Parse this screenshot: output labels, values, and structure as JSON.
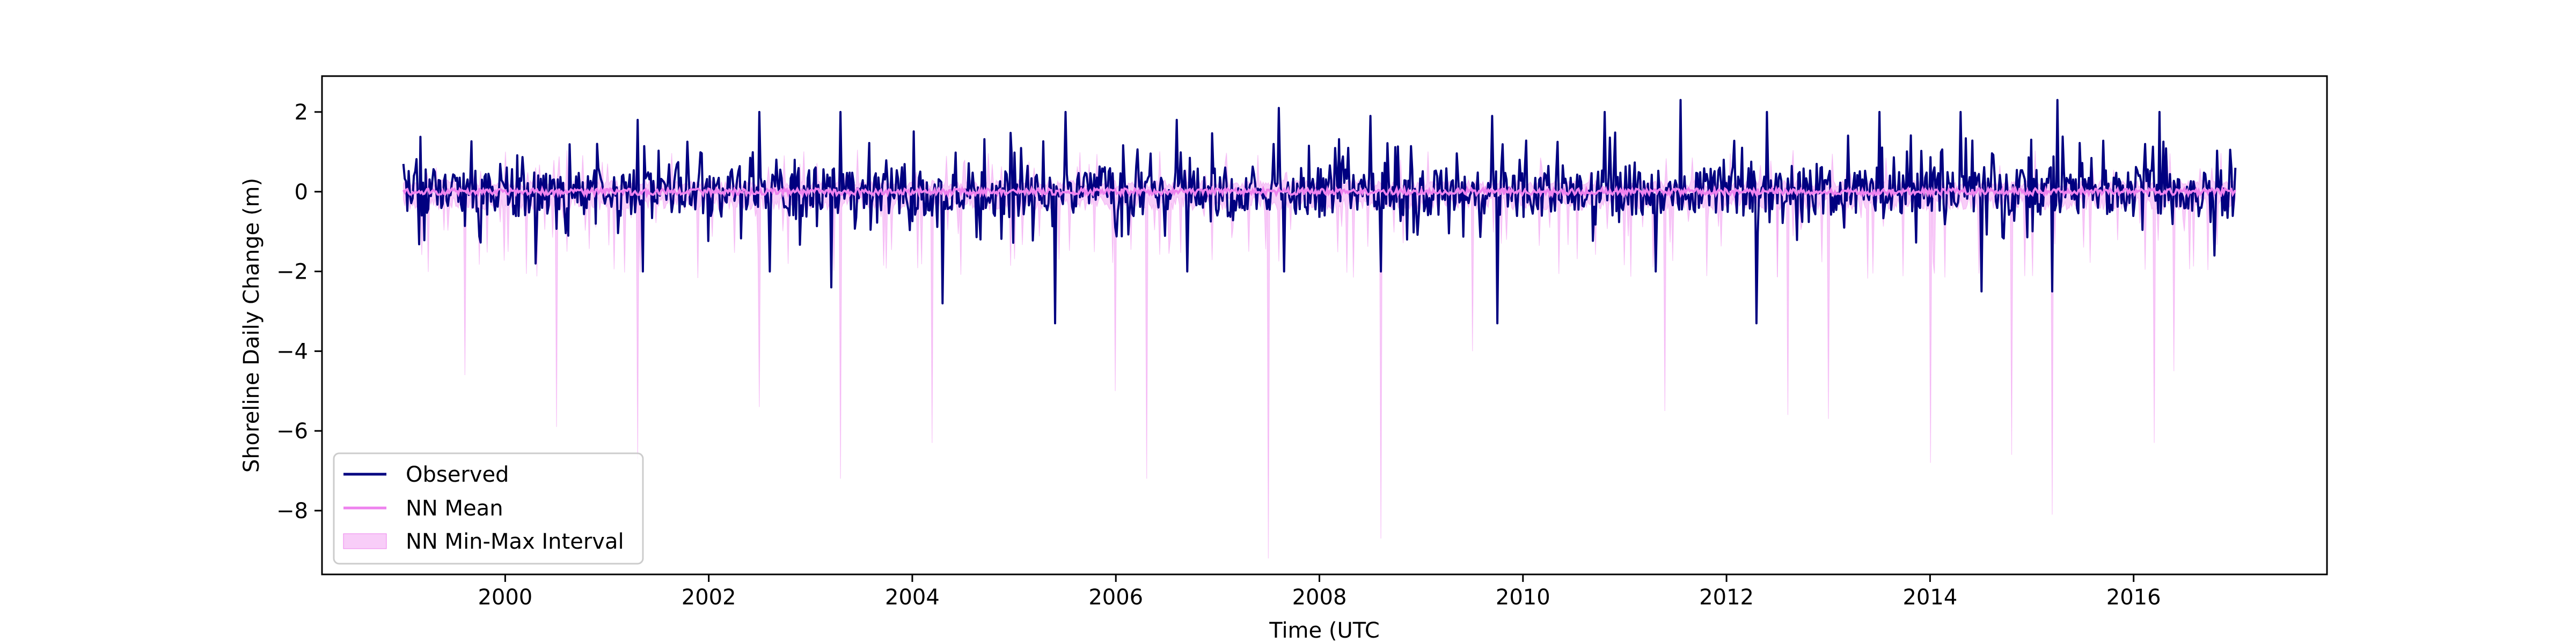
{
  "chart_data": {
    "type": "line",
    "title": "",
    "xlabel": "Time (UTC",
    "ylabel": "Shoreline Daily Change (m)",
    "xlim": [
      1998.2,
      2017.9
    ],
    "ylim": [
      -9.6,
      2.9
    ],
    "x_range": [
      1999.0,
      2017.0
    ],
    "xticks": [
      2000,
      2002,
      2004,
      2006,
      2008,
      2010,
      2012,
      2014,
      2016
    ],
    "xtick_labels": [
      "2000",
      "2002",
      "2004",
      "2006",
      "2008",
      "2010",
      "2012",
      "2014",
      "2016"
    ],
    "yticks": [
      2,
      0,
      -2,
      -4,
      -6,
      -8
    ],
    "ytick_labels": [
      "2",
      "0",
      "−2",
      "−4",
      "−6",
      "−8"
    ],
    "grid": false,
    "legend_position": "lower-left",
    "series": [
      {
        "name": "Observed",
        "kind": "line",
        "color": "#000080",
        "typical_range": [
          -1.2,
          1.0
        ]
      },
      {
        "name": "NN Mean",
        "kind": "line",
        "color": "#ee82ee",
        "typical_range": [
          -0.15,
          0.15
        ]
      },
      {
        "name": "NN Min-Max Interval",
        "kind": "band",
        "color": "#ee82ee",
        "opacity": 0.4,
        "typical_range": [
          -1.5,
          0.6
        ]
      }
    ],
    "observed_peaks": [
      {
        "x": 1999.1,
        "y": 0.4
      },
      {
        "x": 2000.3,
        "y": -1.8
      },
      {
        "x": 2000.9,
        "y": 1.2
      },
      {
        "x": 2001.3,
        "y": 1.8
      },
      {
        "x": 2001.35,
        "y": -2.0
      },
      {
        "x": 2002.5,
        "y": 2.0
      },
      {
        "x": 2002.6,
        "y": -2.0
      },
      {
        "x": 2003.3,
        "y": 2.0
      },
      {
        "x": 2003.2,
        "y": -2.4
      },
      {
        "x": 2004.3,
        "y": 2.2
      },
      {
        "x": 2004.3,
        "y": -2.8
      },
      {
        "x": 2005.4,
        "y": -3.3
      },
      {
        "x": 2005.5,
        "y": 2.0
      },
      {
        "x": 2006.6,
        "y": 1.8
      },
      {
        "x": 2006.7,
        "y": -2.0
      },
      {
        "x": 2007.6,
        "y": 2.1
      },
      {
        "x": 2007.65,
        "y": -2.0
      },
      {
        "x": 2008.5,
        "y": 1.9
      },
      {
        "x": 2008.6,
        "y": -2.0
      },
      {
        "x": 2009.7,
        "y": 1.9
      },
      {
        "x": 2009.75,
        "y": -3.3
      },
      {
        "x": 2010.8,
        "y": 2.0
      },
      {
        "x": 2011.3,
        "y": -2.0
      },
      {
        "x": 2011.55,
        "y": 2.3
      },
      {
        "x": 2012.3,
        "y": -3.3
      },
      {
        "x": 2012.4,
        "y": 2.0
      },
      {
        "x": 2013.5,
        "y": 2.0
      },
      {
        "x": 2014.3,
        "y": 2.0
      },
      {
        "x": 2014.5,
        "y": -2.5
      },
      {
        "x": 2015.25,
        "y": 2.3
      },
      {
        "x": 2015.2,
        "y": -2.5
      },
      {
        "x": 2016.25,
        "y": 2.0
      },
      {
        "x": 2016.8,
        "y": -1.6
      },
      {
        "x": 2017.0,
        "y": 0.6
      }
    ],
    "interval_minima": [
      {
        "x": 1999.6,
        "y": -4.6
      },
      {
        "x": 2000.5,
        "y": -5.9
      },
      {
        "x": 2001.3,
        "y": -6.7
      },
      {
        "x": 2002.5,
        "y": -5.4
      },
      {
        "x": 2003.3,
        "y": -7.2
      },
      {
        "x": 2004.2,
        "y": -6.3
      },
      {
        "x": 2006.0,
        "y": -5.0
      },
      {
        "x": 2006.3,
        "y": -7.2
      },
      {
        "x": 2007.5,
        "y": -9.2
      },
      {
        "x": 2008.6,
        "y": -8.7
      },
      {
        "x": 2009.5,
        "y": -4.0
      },
      {
        "x": 2011.4,
        "y": -5.5
      },
      {
        "x": 2012.6,
        "y": -5.6
      },
      {
        "x": 2013.0,
        "y": -5.7
      },
      {
        "x": 2014.0,
        "y": -6.8
      },
      {
        "x": 2014.8,
        "y": -6.6
      },
      {
        "x": 2015.2,
        "y": -8.1
      },
      {
        "x": 2016.2,
        "y": -6.3
      },
      {
        "x": 2016.4,
        "y": -4.5
      }
    ]
  }
}
